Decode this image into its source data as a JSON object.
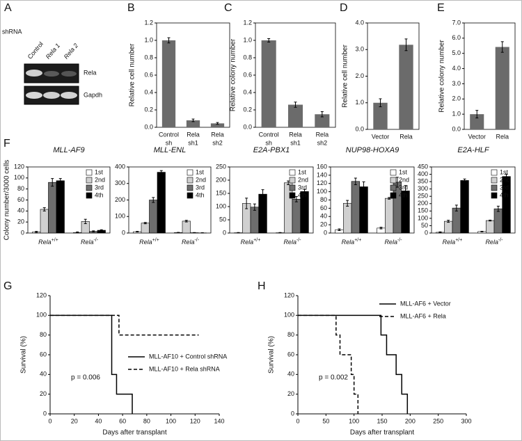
{
  "blot": {
    "panel": "A",
    "row_label": "shRNA",
    "lanes": [
      "Control",
      "Rela 1",
      "Rela 2"
    ],
    "bands": [
      "Rela",
      "Gapdh"
    ]
  },
  "chart_data": [
    {
      "type": "bar",
      "panel": "B",
      "ylabel": "Relative cell number",
      "categories": [
        [
          "Control",
          "sh"
        ],
        [
          "Rela",
          "sh1"
        ],
        [
          "Rela",
          "sh2"
        ]
      ],
      "values": [
        1.0,
        0.08,
        0.045
      ],
      "errors": [
        0.03,
        0.015,
        0.01
      ],
      "color": "#6b6b6b",
      "ylim": [
        0,
        1.2
      ],
      "yticks": [
        {
          "value": 0,
          "label": "0.0"
        },
        0.2,
        0.4,
        0.6,
        0.8,
        {
          "value": 1,
          "label": "1.0"
        },
        1.2
      ]
    },
    {
      "type": "bar",
      "panel": "C",
      "ylabel": "Relative colony number",
      "categories": [
        [
          "Control",
          "sh"
        ],
        [
          "Rela",
          "sh1"
        ],
        [
          "Rela",
          "sh2"
        ]
      ],
      "values": [
        1.0,
        0.26,
        0.15
      ],
      "errors": [
        0.02,
        0.03,
        0.03
      ],
      "color": "#6b6b6b",
      "ylim": [
        0,
        1.2
      ],
      "yticks": [
        {
          "value": 0,
          "label": "0.0"
        },
        0.2,
        0.4,
        0.6,
        0.8,
        {
          "value": 1,
          "label": "1.0"
        },
        1.2
      ]
    },
    {
      "type": "bar",
      "panel": "D",
      "ylabel": "Relative cell number",
      "categories": [
        [
          "Vector"
        ],
        [
          "Rela"
        ]
      ],
      "values": [
        1.0,
        3.18
      ],
      "errors": [
        0.15,
        0.22
      ],
      "color": "#6b6b6b",
      "ylim": [
        0,
        4
      ],
      "yticks": [
        {
          "value": 0,
          "label": "0.0"
        },
        {
          "value": 1,
          "label": "1.0"
        },
        {
          "value": 2,
          "label": "2.0"
        },
        {
          "value": 3,
          "label": "3.0"
        },
        {
          "value": 4,
          "label": "4.0"
        }
      ]
    },
    {
      "type": "bar",
      "panel": "E",
      "ylabel": "Relative colony number",
      "categories": [
        [
          "Vector"
        ],
        [
          "Rela"
        ]
      ],
      "values": [
        1.0,
        5.42
      ],
      "errors": [
        0.25,
        0.35
      ],
      "color": "#6b6b6b",
      "ylim": [
        0,
        7
      ],
      "yticks": [
        {
          "value": 0,
          "label": "0.0"
        },
        {
          "value": 1,
          "label": "1.0"
        },
        {
          "value": 2,
          "label": "2.0"
        },
        {
          "value": 3,
          "label": "3.0"
        },
        {
          "value": 4,
          "label": "4.0"
        },
        {
          "value": 5,
          "label": "5.0"
        },
        {
          "value": 6,
          "label": "6.0"
        },
        {
          "value": 7,
          "label": "7.0"
        }
      ]
    },
    {
      "type": "bar",
      "panel": "F",
      "title": "MLL-AF9",
      "ylabel": "Colony number/3000 cells",
      "categories": [
        [
          "Rela",
          "+/+"
        ],
        [
          "Rela",
          "-/-"
        ]
      ],
      "ylim": [
        0,
        120
      ],
      "yticks": [
        0,
        20,
        40,
        60,
        80,
        100,
        120
      ],
      "legend": "upper right",
      "series": [
        {
          "name": "1st",
          "color": "#ffffff",
          "values": [
            2,
            1
          ],
          "errors": [
            1,
            1
          ]
        },
        {
          "name": "2nd",
          "color": "#d0d0d0",
          "values": [
            43,
            21
          ],
          "errors": [
            3,
            4
          ]
        },
        {
          "name": "3rd",
          "color": "#6e6e6e",
          "values": [
            92,
            3
          ],
          "errors": [
            7,
            1
          ]
        },
        {
          "name": "4th",
          "color": "#000000",
          "values": [
            95,
            5
          ],
          "errors": [
            4,
            1
          ]
        }
      ]
    },
    {
      "type": "bar",
      "title": "MLL-ENL",
      "categories": [
        [
          "Rela",
          "+/+"
        ],
        [
          "Rela",
          "-/-"
        ]
      ],
      "ylim": [
        0,
        400
      ],
      "yticks": [
        0,
        100,
        200,
        300,
        400
      ],
      "legend": "upper right",
      "series": [
        {
          "name": "1st",
          "color": "#ffffff",
          "values": [
            8,
            3
          ],
          "errors": [
            2,
            1
          ]
        },
        {
          "name": "2nd",
          "color": "#d0d0d0",
          "values": [
            60,
            72
          ],
          "errors": [
            4,
            5
          ]
        },
        {
          "name": "3rd",
          "color": "#6e6e6e",
          "values": [
            200,
            2
          ],
          "errors": [
            15,
            1
          ]
        },
        {
          "name": "4th",
          "color": "#000000",
          "values": [
            368,
            1
          ],
          "errors": [
            10,
            1
          ]
        }
      ]
    },
    {
      "type": "bar",
      "title": "E2A-PBX1",
      "categories": [
        [
          "Rela",
          "+/+"
        ],
        [
          "Rela",
          "-/-"
        ]
      ],
      "ylim": [
        0,
        250
      ],
      "yticks": [
        0,
        50,
        100,
        150,
        200,
        250
      ],
      "legend": "upper right",
      "series": [
        {
          "name": "1st",
          "color": "#ffffff",
          "values": [
            1,
            1
          ],
          "errors": [
            1,
            1
          ]
        },
        {
          "name": "2nd",
          "color": "#d0d0d0",
          "values": [
            112,
            190
          ],
          "errors": [
            20,
            7
          ]
        },
        {
          "name": "3rd",
          "color": "#6e6e6e",
          "values": [
            98,
            128
          ],
          "errors": [
            12,
            10
          ]
        },
        {
          "name": "4th",
          "color": "#000000",
          "values": [
            147,
            157
          ],
          "errors": [
            17,
            8
          ]
        }
      ]
    },
    {
      "type": "bar",
      "title": "NUP98-HOXA9",
      "categories": [
        [
          "Rela",
          "+/+"
        ],
        [
          "Rela",
          "-/-"
        ]
      ],
      "ylim": [
        0,
        160
      ],
      "yticks": [
        0,
        20,
        40,
        60,
        80,
        100,
        120,
        140,
        160
      ],
      "legend": "upper right",
      "series": [
        {
          "name": "1st",
          "color": "#ffffff",
          "values": [
            8,
            12
          ],
          "errors": [
            2,
            2
          ]
        },
        {
          "name": "2nd",
          "color": "#d0d0d0",
          "values": [
            72,
            84
          ],
          "errors": [
            7,
            2
          ]
        },
        {
          "name": "3rd",
          "color": "#6e6e6e",
          "values": [
            125,
            123
          ],
          "errors": [
            8,
            12
          ]
        },
        {
          "name": "4th",
          "color": "#000000",
          "values": [
            112,
            102
          ],
          "errors": [
            12,
            13
          ]
        }
      ]
    },
    {
      "type": "bar",
      "title": "E2A-HLF",
      "categories": [
        [
          "Rela",
          "+/+"
        ],
        [
          "Rela",
          "-/-"
        ]
      ],
      "ylim": [
        0,
        450
      ],
      "yticks": [
        0,
        50,
        100,
        150,
        200,
        250,
        300,
        350,
        400,
        450
      ],
      "legend": "upper right",
      "series": [
        {
          "name": "1st",
          "color": "#ffffff",
          "values": [
            5,
            10
          ],
          "errors": [
            3,
            2
          ]
        },
        {
          "name": "2nd",
          "color": "#d0d0d0",
          "values": [
            80,
            85
          ],
          "errors": [
            7,
            3
          ]
        },
        {
          "name": "3rd",
          "color": "#6e6e6e",
          "values": [
            170,
            165
          ],
          "errors": [
            20,
            18
          ]
        },
        {
          "name": "4th",
          "color": "#000000",
          "values": [
            358,
            385
          ],
          "errors": [
            10,
            15
          ]
        }
      ]
    },
    {
      "type": "line",
      "panel": "G",
      "xlabel": "Days after transplant",
      "ylabel": "Survival (%)",
      "annotation": "p = 0.006",
      "xlim": [
        0,
        140
      ],
      "xticks": [
        0,
        20,
        40,
        60,
        80,
        100,
        120,
        140
      ],
      "ylim": [
        0,
        120
      ],
      "yticks": [
        0,
        20,
        40,
        60,
        80,
        100,
        120
      ],
      "legend": "center right",
      "series": [
        {
          "name": "MLL-AF10 + Control shRNA",
          "color": "#000000",
          "dashed": false,
          "x": [
            0,
            51,
            51,
            55,
            55,
            68,
            68
          ],
          "values": [
            100,
            100,
            40,
            40,
            20,
            20,
            0
          ]
        },
        {
          "name": "MLL-AF10 + Rela shRNA",
          "color": "#000000",
          "dashed": true,
          "x": [
            0,
            57,
            57,
            123
          ],
          "values": [
            100,
            100,
            80,
            80
          ]
        }
      ]
    },
    {
      "type": "line",
      "panel": "H",
      "xlabel": "Days after transplant",
      "ylabel": "Survival (%)",
      "annotation": "p = 0.002",
      "xlim": [
        0,
        300
      ],
      "xticks": [
        0,
        50,
        100,
        150,
        200,
        250,
        300
      ],
      "ylim": [
        0,
        120
      ],
      "yticks": [
        0,
        20,
        40,
        60,
        80,
        100,
        120
      ],
      "legend": "upper right",
      "series": [
        {
          "name": "MLL-AF6 + Vector",
          "color": "#000000",
          "dashed": false,
          "x": [
            0,
            148,
            148,
            158,
            158,
            175,
            175,
            185,
            185,
            195,
            195
          ],
          "values": [
            100,
            100,
            80,
            80,
            60,
            60,
            40,
            40,
            20,
            20,
            0
          ]
        },
        {
          "name": "MLL-AF6 + Rela",
          "color": "#000000",
          "dashed": true,
          "x": [
            0,
            68,
            68,
            75,
            75,
            95,
            95,
            100,
            100,
            107,
            107
          ],
          "values": [
            100,
            100,
            80,
            80,
            60,
            60,
            40,
            40,
            20,
            20,
            0
          ]
        }
      ]
    }
  ]
}
